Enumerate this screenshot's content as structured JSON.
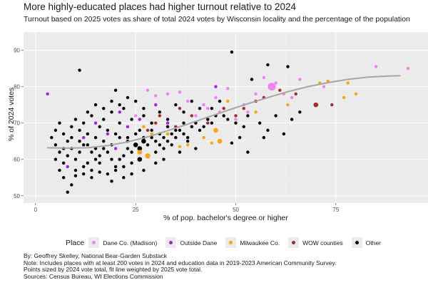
{
  "chart_data": {
    "type": "scatter",
    "title": "More highly-educated places had higher turnout relative to 2024",
    "subtitle": "Turnout based on 2025 votes as share of total 2024 votes by Wisconsin locality and the percentage of the population",
    "xlabel": "% of pop. bachelor's degree or higher",
    "ylabel": "% of 2024 votes",
    "xlim": [
      -3,
      98
    ],
    "ylim": [
      48,
      95
    ],
    "x_ticks": [
      0,
      25,
      50,
      75
    ],
    "y_ticks": [
      50,
      60,
      70,
      80,
      90
    ],
    "grid": true,
    "legend": {
      "title": "Place",
      "position": "bottom",
      "entries": [
        {
          "name": "Dane Co. (Madison)",
          "color": "#ee82ee"
        },
        {
          "name": "Outside Dane",
          "color": "#a020f0"
        },
        {
          "name": "Milwaukee Co.",
          "color": "#ffa500"
        },
        {
          "name": "WOW counties",
          "color": "#a52a2a"
        },
        {
          "name": "Other",
          "color": "#000000"
        }
      ]
    },
    "fit_line": {
      "color": "#a6a6a6",
      "points": [
        [
          3,
          63.2
        ],
        [
          8,
          63.1
        ],
        [
          13,
          63.2
        ],
        [
          18,
          63.8
        ],
        [
          23,
          64.8
        ],
        [
          28,
          66.2
        ],
        [
          33,
          67.9
        ],
        [
          38,
          69.7
        ],
        [
          43,
          71.6
        ],
        [
          48,
          73.5
        ],
        [
          53,
          75.3
        ],
        [
          58,
          77.0
        ],
        [
          63,
          78.6
        ],
        [
          68,
          80.0
        ],
        [
          73,
          81.1
        ],
        [
          78,
          82.0
        ],
        [
          83,
          82.6
        ],
        [
          88,
          82.9
        ],
        [
          91,
          83.0
        ]
      ]
    },
    "series": [
      {
        "name": "Dane Co. (Madison)",
        "color": "#ee82ee",
        "points": [
          [
            59,
            80,
            3
          ],
          [
            57,
            82.5,
            1
          ],
          [
            62,
            78,
            1
          ],
          [
            64,
            77,
            1
          ],
          [
            52,
            75,
            1
          ],
          [
            48,
            79.5,
            1
          ],
          [
            45,
            77,
            1
          ],
          [
            43,
            74,
            1
          ],
          [
            46,
            73,
            1
          ],
          [
            55,
            78,
            1
          ],
          [
            38,
            76,
            1
          ],
          [
            36,
            78.5,
            1
          ],
          [
            33,
            78,
            1
          ],
          [
            28,
            79,
            1
          ],
          [
            30,
            77.5,
            1
          ],
          [
            40,
            72,
            1
          ],
          [
            42,
            75,
            1
          ],
          [
            60,
            81,
            1
          ],
          [
            66,
            82,
            1
          ],
          [
            72,
            80,
            1
          ],
          [
            85,
            85.5,
            1
          ],
          [
            93,
            85,
            1
          ],
          [
            50,
            71,
            1
          ],
          [
            53,
            73,
            1
          ],
          [
            25,
            72,
            1
          ]
        ]
      },
      {
        "name": "Outside Dane",
        "color": "#a020f0",
        "points": [
          [
            3,
            78,
            1
          ],
          [
            21,
            73,
            1
          ],
          [
            26,
            71,
            1
          ],
          [
            30,
            75,
            1
          ],
          [
            33,
            70,
            1
          ],
          [
            18,
            67,
            1
          ],
          [
            12,
            66,
            1
          ],
          [
            20,
            63,
            1
          ],
          [
            15,
            70,
            1
          ],
          [
            23,
            69,
            1
          ],
          [
            45,
            80,
            1
          ],
          [
            8,
            58,
            1
          ]
        ]
      },
      {
        "name": "Milwaukee Co.",
        "color": "#ffa500",
        "points": [
          [
            26,
            62,
            2
          ],
          [
            28,
            61,
            2
          ],
          [
            38,
            64,
            1
          ],
          [
            42,
            66,
            1
          ],
          [
            33,
            67,
            1
          ],
          [
            36,
            63.5,
            1
          ],
          [
            29,
            67,
            1
          ],
          [
            44,
            64.5,
            1
          ],
          [
            46,
            65,
            2
          ],
          [
            27,
            69,
            1
          ],
          [
            45,
            68,
            2
          ],
          [
            48,
            76,
            1
          ],
          [
            55,
            73,
            1
          ],
          [
            63,
            75,
            1
          ],
          [
            71,
            81,
            1
          ],
          [
            73,
            81.5,
            1
          ],
          [
            78,
            81,
            1
          ],
          [
            80,
            78,
            1
          ],
          [
            77,
            77,
            1
          ]
        ]
      },
      {
        "name": "WOW counties",
        "color": "#a52a2a",
        "points": [
          [
            30,
            70,
            1
          ],
          [
            35,
            69,
            1
          ],
          [
            39,
            72,
            1
          ],
          [
            43,
            70,
            1
          ],
          [
            47,
            74,
            1
          ],
          [
            50,
            72,
            1
          ],
          [
            55,
            76,
            1
          ],
          [
            57,
            77,
            1
          ],
          [
            61,
            79,
            1
          ],
          [
            70,
            75,
            2
          ],
          [
            74,
            75,
            1
          ],
          [
            65,
            78,
            1
          ],
          [
            52,
            74,
            1
          ],
          [
            36,
            74,
            1
          ],
          [
            31,
            72,
            1
          ],
          [
            28,
            68,
            1
          ]
        ]
      },
      {
        "name": "Other",
        "color": "#000000",
        "points": [
          [
            11,
            84.5,
            1
          ],
          [
            49,
            89.5,
            1
          ],
          [
            63,
            85.5,
            1
          ],
          [
            58,
            86,
            1
          ],
          [
            54,
            82,
            1
          ],
          [
            20,
            79,
            1
          ],
          [
            8,
            51,
            1
          ],
          [
            9,
            53,
            1
          ],
          [
            7,
            55,
            1
          ],
          [
            10,
            57,
            1
          ],
          [
            12,
            56,
            1
          ],
          [
            14,
            55,
            1
          ],
          [
            13,
            59,
            1
          ],
          [
            5,
            60,
            1
          ],
          [
            6,
            62,
            1
          ],
          [
            8,
            61,
            1
          ],
          [
            9,
            63,
            1
          ],
          [
            11,
            62,
            1
          ],
          [
            12,
            64,
            1
          ],
          [
            14,
            62,
            1
          ],
          [
            15,
            60,
            1
          ],
          [
            16,
            61,
            1
          ],
          [
            17,
            63,
            1
          ],
          [
            18,
            62,
            1
          ],
          [
            19,
            60,
            1
          ],
          [
            20,
            58,
            1
          ],
          [
            21,
            60,
            1
          ],
          [
            22,
            61,
            1
          ],
          [
            23,
            63,
            1
          ],
          [
            24,
            62,
            1
          ],
          [
            25,
            64,
            2
          ],
          [
            26,
            63,
            2
          ],
          [
            27,
            65,
            2
          ],
          [
            28,
            64,
            1
          ],
          [
            29,
            66,
            1
          ],
          [
            30,
            65,
            1
          ],
          [
            31,
            64,
            1
          ],
          [
            32,
            66,
            1
          ],
          [
            33,
            65,
            1
          ],
          [
            34,
            67,
            1
          ],
          [
            35,
            66,
            1
          ],
          [
            36,
            68,
            1
          ],
          [
            37,
            67,
            1
          ],
          [
            38,
            66,
            1
          ],
          [
            39,
            69,
            1
          ],
          [
            40,
            70,
            1
          ],
          [
            41,
            68,
            1
          ],
          [
            42,
            69,
            1
          ],
          [
            43,
            71,
            1
          ],
          [
            44,
            70,
            1
          ],
          [
            45,
            72,
            1
          ],
          [
            47,
            72,
            1
          ],
          [
            48,
            71,
            1
          ],
          [
            50,
            70,
            1
          ],
          [
            52,
            69,
            1
          ],
          [
            53,
            72,
            1
          ],
          [
            56,
            70,
            1
          ],
          [
            58,
            68,
            1
          ],
          [
            60,
            72,
            1
          ],
          [
            49,
            64.5,
            1
          ],
          [
            4,
            66,
            1
          ],
          [
            5,
            68,
            1
          ],
          [
            6,
            70,
            1
          ],
          [
            7,
            67,
            1
          ],
          [
            8,
            65,
            1
          ],
          [
            9,
            69,
            1
          ],
          [
            10,
            71,
            1
          ],
          [
            11,
            68,
            1
          ],
          [
            12,
            70,
            1
          ],
          [
            13,
            67,
            1
          ],
          [
            14,
            72,
            1
          ],
          [
            15,
            66,
            1
          ],
          [
            16,
            69,
            1
          ],
          [
            17,
            71,
            1
          ],
          [
            18,
            68,
            1
          ],
          [
            19,
            73,
            1
          ],
          [
            20,
            67,
            1
          ],
          [
            21,
            70,
            1
          ],
          [
            22,
            74,
            1
          ],
          [
            23,
            66,
            1
          ],
          [
            24,
            71,
            1
          ],
          [
            26,
            68,
            1
          ],
          [
            27,
            72,
            1
          ],
          [
            29,
            70,
            1
          ],
          [
            31,
            73,
            1
          ],
          [
            33,
            71,
            1
          ],
          [
            35,
            75,
            1
          ],
          [
            37,
            73,
            1
          ],
          [
            39,
            76,
            1
          ],
          [
            41,
            74,
            1
          ],
          [
            6,
            57,
            1
          ],
          [
            7,
            59,
            1
          ],
          [
            10,
            60,
            1
          ],
          [
            12,
            58,
            1
          ],
          [
            14,
            57,
            1
          ],
          [
            16,
            59,
            1
          ],
          [
            18,
            56,
            1
          ],
          [
            20,
            57,
            1
          ],
          [
            22,
            58,
            1
          ],
          [
            24,
            59,
            1
          ],
          [
            26,
            60,
            2
          ],
          [
            28,
            61,
            2
          ],
          [
            30,
            62,
            1
          ],
          [
            32,
            63,
            1
          ],
          [
            34,
            64,
            1
          ],
          [
            36,
            62,
            1
          ],
          [
            38,
            65,
            1
          ],
          [
            40,
            63,
            1
          ],
          [
            5,
            64,
            1
          ],
          [
            7,
            63,
            1
          ],
          [
            9,
            66,
            1
          ],
          [
            11,
            65,
            1
          ],
          [
            13,
            64,
            1
          ],
          [
            15,
            63,
            1
          ],
          [
            17,
            65,
            1
          ],
          [
            19,
            64,
            1
          ],
          [
            21,
            66,
            1
          ],
          [
            23,
            65,
            1
          ],
          [
            25,
            67,
            1
          ],
          [
            27,
            66,
            1
          ],
          [
            29,
            68,
            1
          ],
          [
            31,
            67,
            1
          ],
          [
            33,
            69,
            1
          ],
          [
            35,
            68,
            1
          ],
          [
            37,
            70,
            1
          ],
          [
            13,
            73,
            1
          ],
          [
            15,
            75,
            1
          ],
          [
            17,
            74,
            1
          ],
          [
            19,
            76,
            1
          ],
          [
            21,
            75,
            1
          ],
          [
            23,
            77,
            1
          ],
          [
            25,
            76,
            1
          ],
          [
            27,
            74,
            1
          ],
          [
            16,
            56.5,
            1
          ],
          [
            19,
            54,
            1
          ],
          [
            22,
            55,
            1
          ],
          [
            10,
            55.5,
            1
          ],
          [
            24,
            56,
            1
          ],
          [
            27,
            57,
            1
          ],
          [
            30,
            59,
            1
          ],
          [
            32,
            60,
            1
          ],
          [
            44,
            74,
            1
          ],
          [
            46,
            76,
            1
          ],
          [
            51,
            66,
            1
          ],
          [
            53,
            62,
            1
          ],
          [
            57,
            66,
            1
          ],
          [
            62,
            67,
            1
          ],
          [
            64,
            71,
            1
          ],
          [
            66,
            73,
            1
          ]
        ]
      }
    ]
  },
  "notes": [
    "By: Geoffrey Skelley, National Bear-Garden Substack",
    "Note: Includes places with at least 200 votes in 2024 and education data in 2019-2023 American Community Survey.",
    "Points sized by 2024 vote total, fit line weighted by 2025 vote total.",
    "Sources: Census Bureau, WI Elections Commission"
  ]
}
